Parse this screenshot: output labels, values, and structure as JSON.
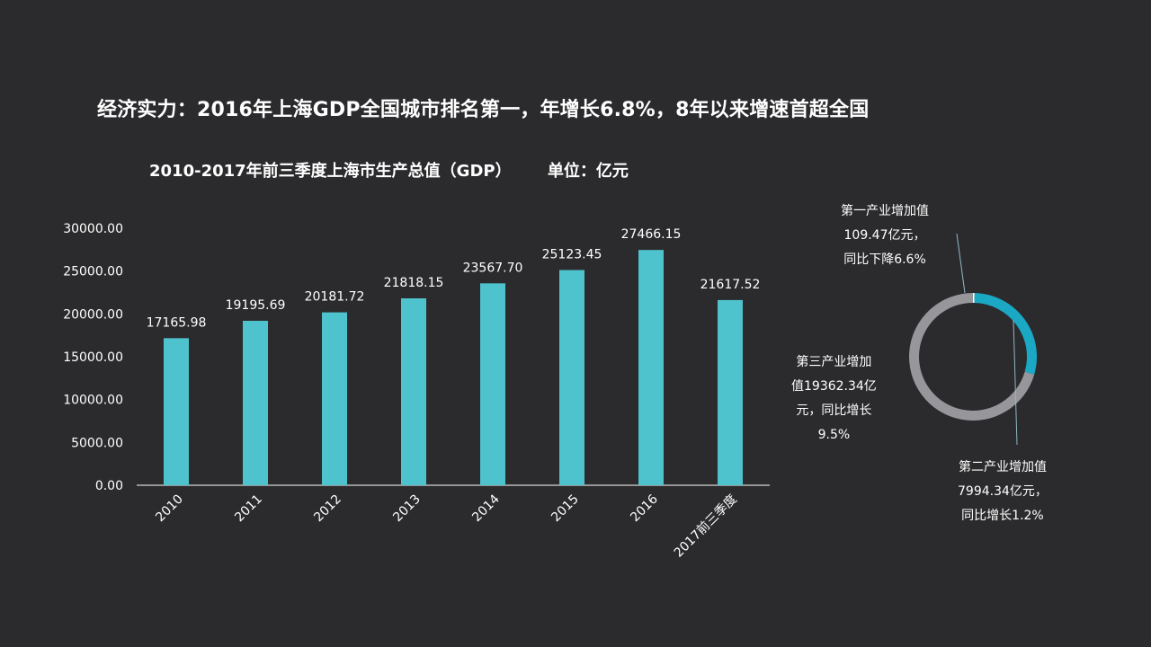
{
  "slide": {
    "title": "经济实力：2016年上海GDP全国城市排名第一，年增长6.8%，8年以来增速首超全国"
  },
  "chart_data": [
    {
      "type": "bar",
      "title": "2010-2017年前三季度上海市生产总值（GDP）",
      "unit": "单位：亿元",
      "categories": [
        "2010",
        "2011",
        "2012",
        "2013",
        "2014",
        "2015",
        "2016",
        "2017前三季度"
      ],
      "values": [
        17165.98,
        19195.69,
        20181.72,
        21818.15,
        23567.7,
        25123.45,
        27466.15,
        21617.52
      ],
      "value_labels": [
        "17165.98",
        "19195.69",
        "20181.72",
        "21818.15",
        "23567.70",
        "25123.45",
        "27466.15",
        "21617.52"
      ],
      "ylim": [
        0,
        30000
      ],
      "yticks": [
        "0.00",
        "5000.00",
        "10000.00",
        "15000.00",
        "20000.00",
        "25000.00",
        "30000.00"
      ],
      "ytick_values": [
        0,
        5000,
        10000,
        15000,
        20000,
        25000,
        30000
      ],
      "bar_color": "#4fc3cd",
      "grid": false
    },
    {
      "type": "pie",
      "style": "donut",
      "slices": [
        {
          "name": "第一产业增加值",
          "value": 109.47,
          "color": "#ffffff",
          "label_lines": [
            "第一产业增加值",
            "109.47亿元，",
            "同比下降6.6%"
          ]
        },
        {
          "name": "第二产业增加值",
          "value": 7994.34,
          "color": "#1ba8c4",
          "label_lines": [
            "第二产业增加值",
            "7994.34亿元，",
            "同比增长1.2%"
          ]
        },
        {
          "name": "第三产业增加值",
          "value": 19362.34,
          "color": "#96969b",
          "label_lines": [
            "第三产业增加",
            "值19362.34亿",
            "元，同比增长",
            "9.5%"
          ]
        }
      ]
    }
  ],
  "colors": {
    "background": "#2b2b2d",
    "text": "#ffffff",
    "axis": "#ffffff",
    "leader": "#8fb7c6"
  }
}
